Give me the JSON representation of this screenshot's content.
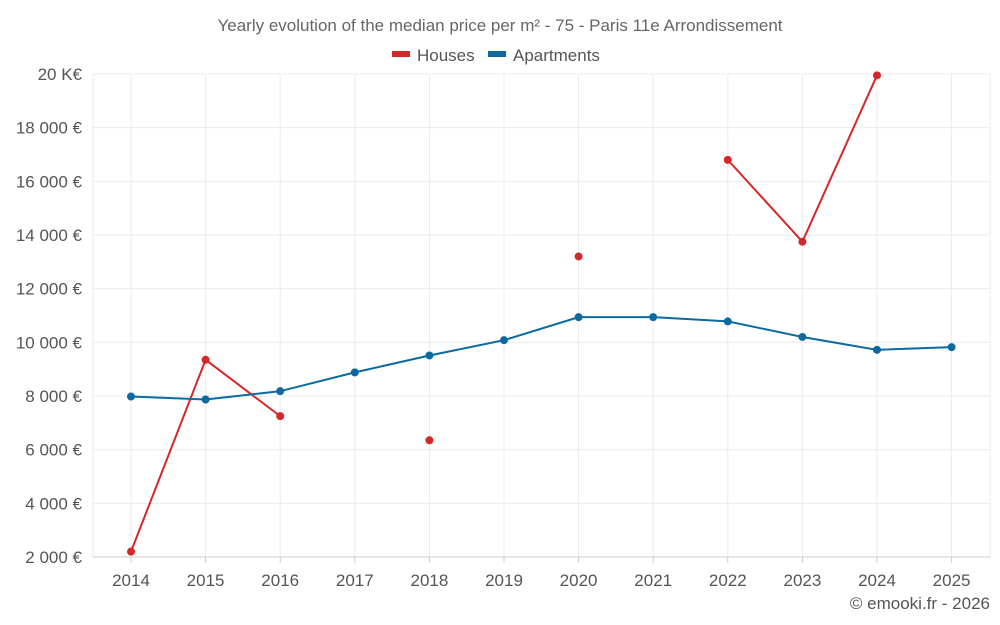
{
  "chart_data": {
    "type": "line",
    "title": "Yearly evolution of the median price per m² - 75 - Paris 11e Arrondissement",
    "categories": [
      "2014",
      "2015",
      "2016",
      "2017",
      "2018",
      "2019",
      "2020",
      "2021",
      "2022",
      "2023",
      "2024",
      "2025"
    ],
    "series": [
      {
        "name": "Houses",
        "color": "#d62728",
        "values": [
          2200,
          9350,
          7250,
          null,
          6350,
          null,
          13200,
          null,
          16800,
          13750,
          19950,
          null
        ]
      },
      {
        "name": "Apartments",
        "color": "#0a6aa1",
        "values": [
          7980,
          7870,
          8180,
          8880,
          9510,
          10080,
          10940,
          10940,
          10780,
          10200,
          9720,
          9820
        ]
      }
    ],
    "ylim": [
      2000,
      20000
    ],
    "yticks": [
      2000,
      4000,
      6000,
      8000,
      10000,
      12000,
      14000,
      16000,
      18000,
      20000
    ],
    "ytick_labels": [
      "2 000 €",
      "4 000 €",
      "6 000 €",
      "8 000 €",
      "10 000 €",
      "12 000 €",
      "14 000 €",
      "16 000 €",
      "18 000 €",
      "20 K€"
    ],
    "xlabel": "",
    "ylabel": "",
    "legend": "top-center",
    "grid": true
  },
  "credit": "© emooki.fr - 2026"
}
